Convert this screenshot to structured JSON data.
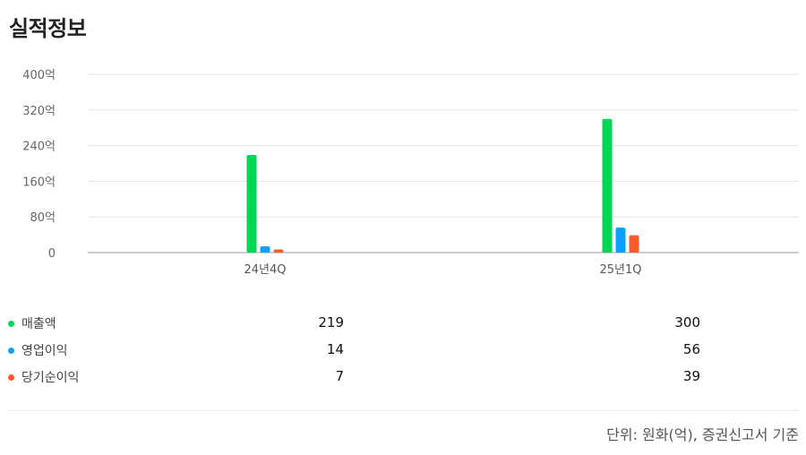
{
  "page": {
    "title": "실적정보"
  },
  "chart_data": {
    "type": "bar",
    "categories": [
      "24년4Q",
      "25년1Q"
    ],
    "series": [
      {
        "name": "매출액",
        "values": [
          219,
          300
        ],
        "color": "#00d655"
      },
      {
        "name": "영업이익",
        "values": [
          14,
          56
        ],
        "color": "#0aa0ff"
      },
      {
        "name": "당기순이익",
        "values": [
          7,
          39
        ],
        "color": "#ff5a2c"
      }
    ],
    "ylim": [
      0,
      400
    ],
    "yticks": [
      {
        "value": 0,
        "label": "0"
      },
      {
        "value": 80,
        "label": "80억"
      },
      {
        "value": 160,
        "label": "160억"
      },
      {
        "value": 240,
        "label": "240억"
      },
      {
        "value": 320,
        "label": "320억"
      },
      {
        "value": 400,
        "label": "400억"
      }
    ],
    "grid": true
  },
  "table": {
    "rows": [
      {
        "name": "매출액",
        "values": [
          "219",
          "300"
        ]
      },
      {
        "name": "영업이익",
        "values": [
          "14",
          "56"
        ]
      },
      {
        "name": "당기순이익",
        "values": [
          "7",
          "39"
        ]
      }
    ]
  },
  "footnote": "단위: 원화(억), 증권신고서 기준"
}
